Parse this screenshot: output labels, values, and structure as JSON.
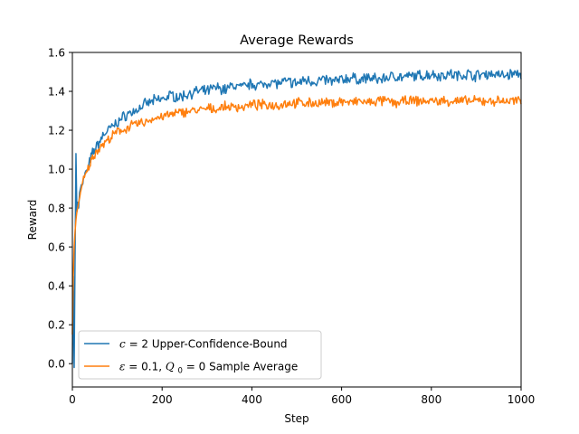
{
  "chart_data": {
    "type": "line",
    "title": "Average Rewards",
    "xlabel": "Step",
    "ylabel": "Reward",
    "xlim": [
      0,
      1000
    ],
    "ylim": [
      -0.12,
      1.6
    ],
    "xticks": [
      0,
      200,
      400,
      600,
      800,
      1000
    ],
    "xtick_labels": [
      "0",
      "200",
      "400",
      "600",
      "800",
      "1000"
    ],
    "yticks": [
      0.0,
      0.2,
      0.4,
      0.6,
      0.8,
      1.0,
      1.2,
      1.4,
      1.6
    ],
    "ytick_labels": [
      "0.0",
      "0.2",
      "0.4",
      "0.6",
      "0.8",
      "1.0",
      "1.2",
      "1.4",
      "1.6"
    ],
    "grid": false,
    "legend_position": "lower left",
    "series": [
      {
        "name": "c = 2 Upper-Confidence-Bound",
        "color": "#1f77b4",
        "x": [
          0,
          2,
          4,
          6,
          8,
          10,
          12,
          14,
          16,
          18,
          20,
          25,
          30,
          35,
          40,
          45,
          50,
          60,
          70,
          80,
          90,
          100,
          120,
          140,
          160,
          180,
          200,
          220,
          240,
          260,
          280,
          300,
          320,
          340,
          360,
          380,
          400,
          420,
          440,
          460,
          480,
          500,
          520,
          540,
          560,
          580,
          600,
          620,
          640,
          660,
          680,
          700,
          720,
          740,
          760,
          780,
          800,
          820,
          840,
          860,
          880,
          900,
          920,
          940,
          960,
          980,
          1000
        ],
        "y": [
          0.0,
          0.45,
          -0.02,
          0.55,
          1.08,
          0.78,
          0.83,
          0.8,
          0.88,
          0.9,
          0.92,
          0.95,
          0.98,
          1.0,
          1.05,
          1.08,
          1.1,
          1.14,
          1.18,
          1.2,
          1.22,
          1.24,
          1.28,
          1.3,
          1.33,
          1.35,
          1.36,
          1.38,
          1.37,
          1.39,
          1.4,
          1.4,
          1.42,
          1.41,
          1.43,
          1.42,
          1.44,
          1.43,
          1.45,
          1.44,
          1.45,
          1.44,
          1.46,
          1.45,
          1.46,
          1.45,
          1.46,
          1.47,
          1.46,
          1.47,
          1.46,
          1.47,
          1.48,
          1.47,
          1.48,
          1.48,
          1.49,
          1.48,
          1.49,
          1.48,
          1.49,
          1.48,
          1.49,
          1.49,
          1.48,
          1.49,
          1.49
        ]
      },
      {
        "name": "ε = 0.1, Q0 = 0 Sample Average",
        "color": "#ff7f0e",
        "x": [
          0,
          2,
          4,
          6,
          8,
          10,
          12,
          14,
          16,
          18,
          20,
          25,
          30,
          35,
          40,
          45,
          50,
          60,
          70,
          80,
          90,
          100,
          120,
          140,
          160,
          180,
          200,
          220,
          240,
          260,
          280,
          300,
          320,
          340,
          360,
          380,
          400,
          420,
          440,
          460,
          480,
          500,
          520,
          540,
          560,
          580,
          600,
          620,
          640,
          660,
          680,
          700,
          720,
          740,
          760,
          780,
          800,
          820,
          840,
          860,
          880,
          900,
          920,
          940,
          960,
          980,
          1000
        ],
        "y": [
          0.15,
          0.45,
          0.6,
          0.68,
          0.74,
          0.78,
          0.8,
          0.83,
          0.85,
          0.88,
          0.9,
          0.94,
          0.97,
          1.0,
          1.03,
          1.06,
          1.08,
          1.11,
          1.13,
          1.15,
          1.17,
          1.19,
          1.21,
          1.23,
          1.24,
          1.26,
          1.27,
          1.28,
          1.29,
          1.3,
          1.3,
          1.31,
          1.31,
          1.32,
          1.32,
          1.32,
          1.33,
          1.33,
          1.33,
          1.33,
          1.34,
          1.34,
          1.34,
          1.34,
          1.34,
          1.34,
          1.35,
          1.34,
          1.35,
          1.34,
          1.35,
          1.35,
          1.34,
          1.35,
          1.35,
          1.35,
          1.35,
          1.35,
          1.35,
          1.35,
          1.35,
          1.35,
          1.35,
          1.35,
          1.35,
          1.35,
          1.35
        ]
      }
    ]
  },
  "legend": {
    "ucb_label": "c = 2 Upper-Confidence-Bound",
    "eps_label": "ε = 0.1, Q0 = 0 Sample Average"
  }
}
